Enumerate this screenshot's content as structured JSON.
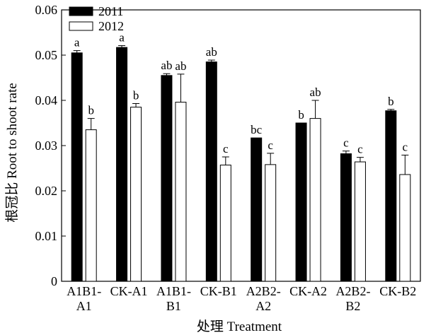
{
  "chart_data": {
    "type": "bar",
    "categories": [
      [
        "A1B1-",
        "A1"
      ],
      [
        "CK-A1"
      ],
      [
        "A1B1-",
        "B1"
      ],
      [
        "CK-B1"
      ],
      [
        "A2B2-",
        "A2"
      ],
      [
        "CK-A2"
      ],
      [
        "A2B2-",
        "B2"
      ],
      [
        "CK-B2"
      ]
    ],
    "series": [
      {
        "name": "2011",
        "color": "#000000",
        "values": [
          0.0505,
          0.0517,
          0.0455,
          0.0485,
          0.0317,
          0.035,
          0.0282,
          0.0377
        ],
        "errors": [
          0.0005,
          0.0004,
          0.0004,
          0.0004,
          0.0,
          0.0,
          0.0006,
          0.0003
        ],
        "labels": [
          "a",
          "a",
          "ab",
          "ab",
          "bc",
          "b",
          "c",
          "b"
        ]
      },
      {
        "name": "2012",
        "color": "#ffffff",
        "values": [
          0.0335,
          0.0385,
          0.0396,
          0.0257,
          0.0258,
          0.036,
          0.0264,
          0.0236
        ],
        "errors": [
          0.0025,
          0.0008,
          0.0062,
          0.0018,
          0.0025,
          0.004,
          0.001,
          0.0043
        ],
        "labels": [
          "b",
          "b",
          "ab",
          "c",
          "c",
          "ab",
          "c",
          "c"
        ]
      }
    ],
    "xlabel": "处理 Treatment",
    "ylabel": "根冠比 Root to shoot rate",
    "ylim": [
      0,
      0.06
    ],
    "yticks": [
      "0",
      "0.01",
      "0.02",
      "0.03",
      "0.04",
      "0.05",
      "0.06"
    ],
    "grid": false,
    "legend_position": "top-left"
  }
}
